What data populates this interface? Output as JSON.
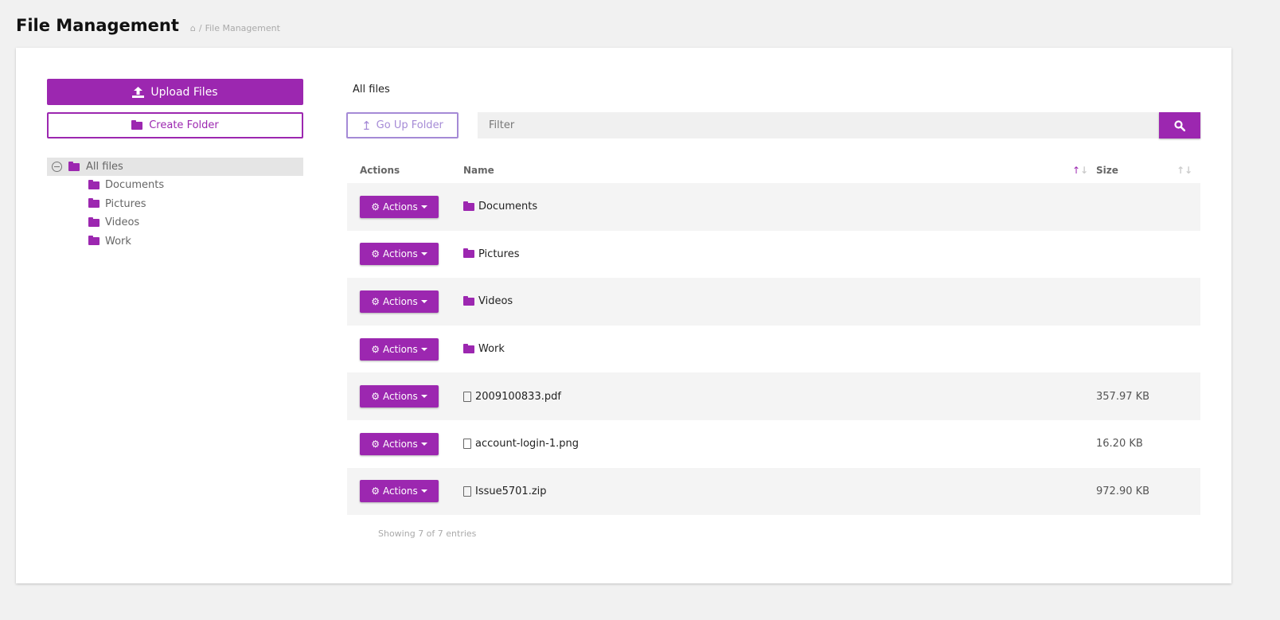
{
  "header": {
    "title": "File Management",
    "breadcrumb": [
      {
        "icon": "home-icon"
      },
      {
        "label": "File Management"
      }
    ]
  },
  "sidebar": {
    "upload_label": "Upload Files",
    "create_folder_label": "Create Folder",
    "tree": {
      "root": "All files",
      "children": [
        "Documents",
        "Pictures",
        "Videos",
        "Work"
      ]
    }
  },
  "main": {
    "current_folder": "All files",
    "go_up_label": "Go Up Folder",
    "filter_placeholder": "Filter",
    "columns": {
      "actions": "Actions",
      "name": "Name",
      "size": "Size"
    },
    "sort": {
      "column": "Name",
      "direction": "ascending"
    },
    "rows": [
      {
        "action": "Actions",
        "name": "Documents",
        "type": "folder",
        "size": ""
      },
      {
        "action": "Actions",
        "name": "Pictures",
        "type": "folder",
        "size": ""
      },
      {
        "action": "Actions",
        "name": "Videos",
        "type": "folder",
        "size": ""
      },
      {
        "action": "Actions",
        "name": "Work",
        "type": "folder",
        "size": ""
      },
      {
        "action": "Actions",
        "name": "2009100833.pdf",
        "type": "pdf",
        "size": "357.97 KB"
      },
      {
        "action": "Actions",
        "name": "account-login-1.png",
        "type": "image",
        "size": "16.20 KB"
      },
      {
        "action": "Actions",
        "name": "Issue5701.zip",
        "type": "archive",
        "size": "972.90 KB"
      }
    ],
    "footer": "Showing 7 of 7 entries"
  },
  "colors": {
    "accent": "#9c27b0",
    "secondary": "#a58ad6"
  }
}
